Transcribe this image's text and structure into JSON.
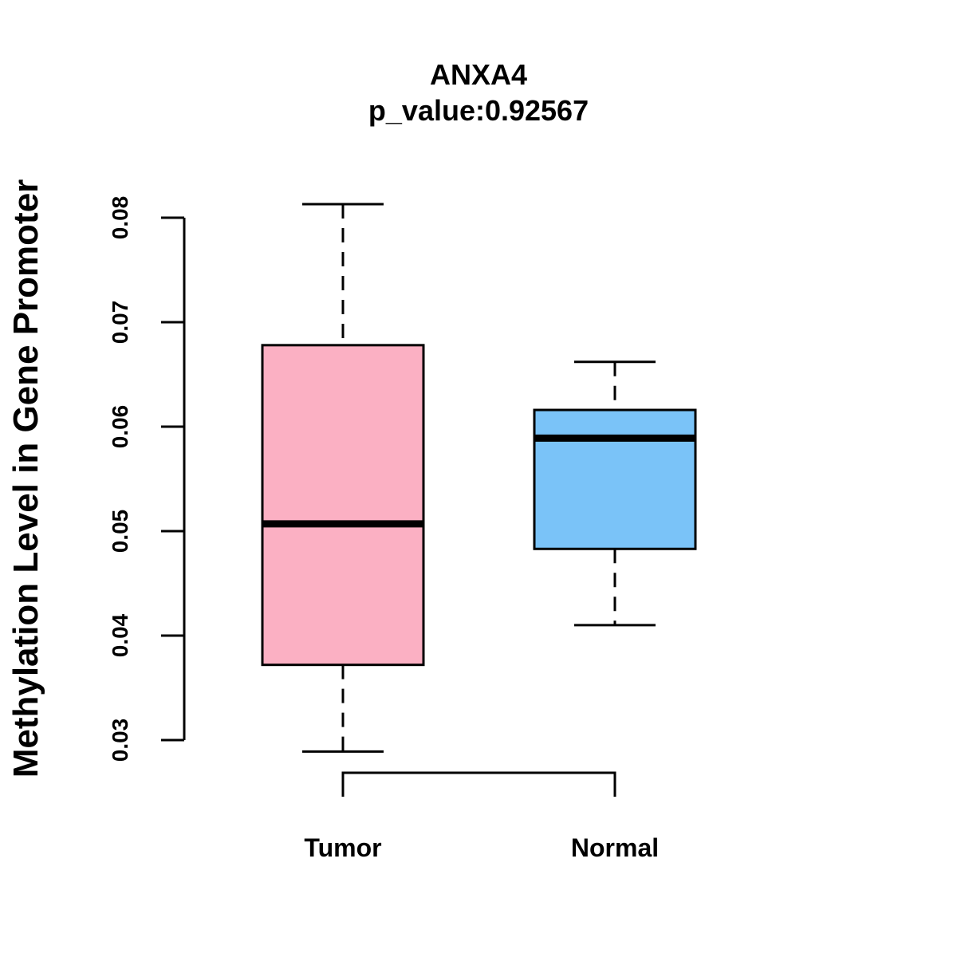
{
  "chart_data": {
    "type": "boxplot",
    "title": "ANXA4",
    "subtitle": "p_value:0.92567",
    "ylabel": "Methylation Level in Gene Promoter",
    "xlabel": "",
    "ylim": [
      0.03,
      0.08
    ],
    "yticks": [
      0.03,
      0.04,
      0.05,
      0.06,
      0.07,
      0.08
    ],
    "ytick_labels": [
      "0.03",
      "0.04",
      "0.05",
      "0.06",
      "0.07",
      "0.08"
    ],
    "categories": [
      "Tumor",
      "Normal"
    ],
    "boxes": [
      {
        "label": "Tumor",
        "color": "#FBB0C3",
        "whisker_low": 0.0289,
        "q1": 0.0372,
        "median": 0.0507,
        "q3": 0.0678,
        "whisker_high": 0.0813
      },
      {
        "label": "Normal",
        "color": "#7AC3F8",
        "whisker_low": 0.041,
        "q1": 0.0483,
        "median": 0.0589,
        "q3": 0.0616,
        "whisker_high": 0.0662
      }
    ],
    "significance_bracket": true,
    "grid": false,
    "legend": "none"
  }
}
